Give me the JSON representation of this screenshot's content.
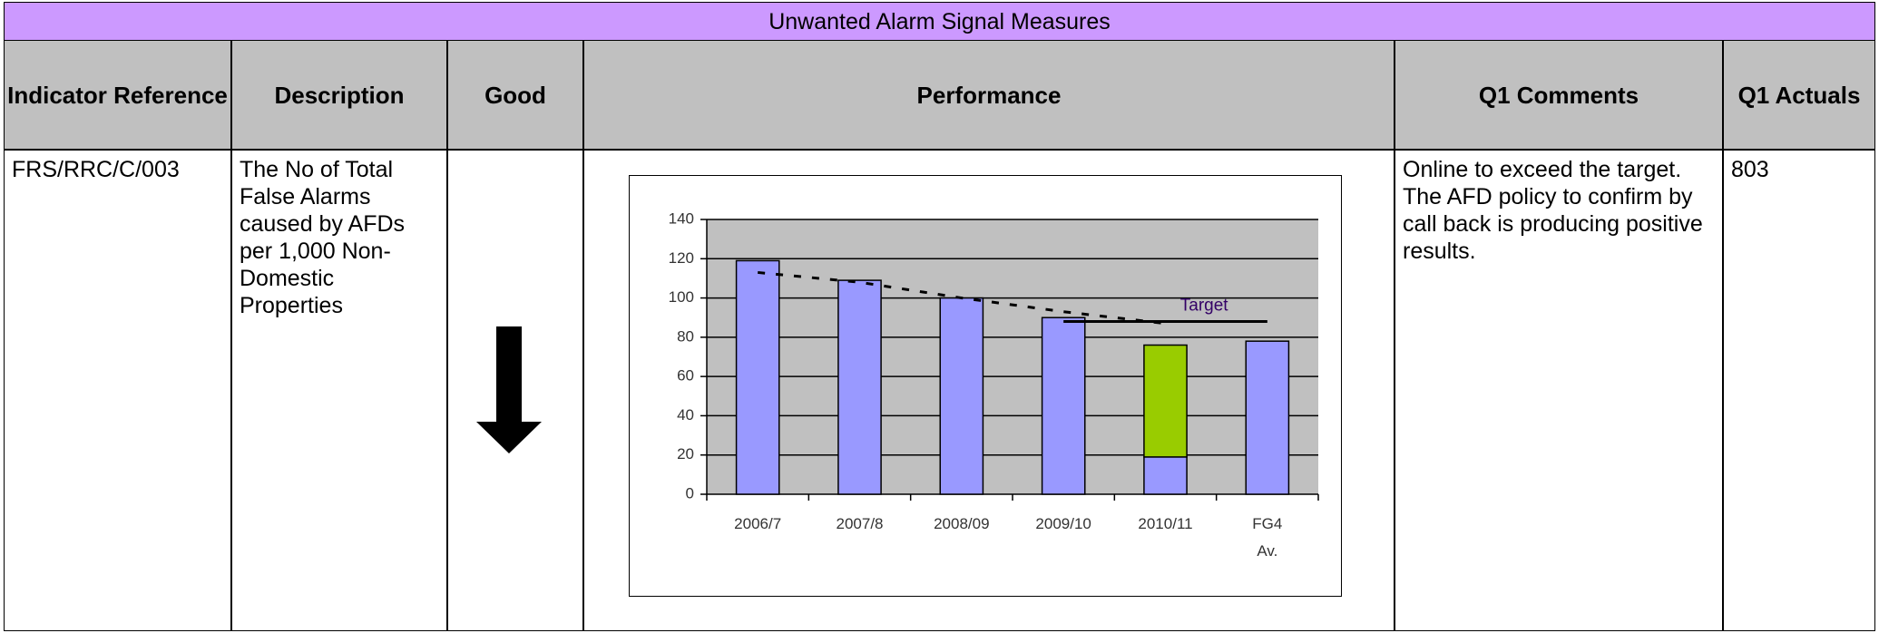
{
  "header": {
    "title": "Unwanted Alarm Signal Measures"
  },
  "table": {
    "columns": [
      "Indicator Reference",
      "Description",
      "Good",
      "Performance",
      "Q1 Comments",
      "Q1 Actuals"
    ],
    "row": {
      "reference": "FRS/RRC/C/003",
      "description": "The No of Total False Alarms caused by AFDs per 1,000 Non-Domestic Properties",
      "comments": "Online to exceed the target.  The AFD policy to confirm by call back is producing positive results.",
      "actuals": "803"
    }
  },
  "chart_data": {
    "type": "bar",
    "stacked": true,
    "categories": [
      "2006/7",
      "2007/8",
      "2008/09",
      "2009/10",
      "2010/11",
      "FG4 Av."
    ],
    "series": [
      {
        "color": "#9999ff",
        "values": [
          119,
          109,
          100,
          90,
          19,
          78
        ]
      },
      {
        "color": "#99cc00",
        "values": [
          null,
          null,
          null,
          null,
          57,
          null
        ]
      }
    ],
    "lines": [
      {
        "label": "Target",
        "color": "#000000",
        "dashed": false,
        "values": [
          null,
          null,
          null,
          88,
          88,
          88
        ]
      },
      {
        "color": "#000000",
        "dashed": true,
        "values": [
          113,
          108,
          100,
          93,
          87,
          null
        ]
      }
    ],
    "ylim": [
      0,
      140
    ],
    "yticks": [
      0,
      20,
      40,
      60,
      80,
      100,
      120,
      140
    ],
    "grid": true,
    "plot_background": "#c0c0c0"
  }
}
